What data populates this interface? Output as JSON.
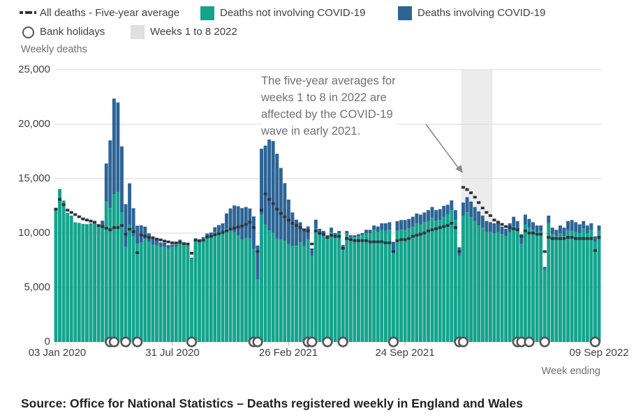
{
  "legend": {
    "five_year_avg": "All deaths - Five-year average",
    "not_covid": "Deaths not involving COVID-19",
    "covid": "Deaths involving COVID-19",
    "bank_holidays": "Bank holidays",
    "weeks_band": "Weeks 1 to 8 2022"
  },
  "axis": {
    "y_title": "Weekly deaths",
    "x_title": "Week ending"
  },
  "annotation": {
    "lines": [
      "The five-year averages for",
      "weeks 1 to 8 in 2022 are",
      "affected by the COVID-19",
      "wave in early 2021."
    ]
  },
  "source": "Source: Office for National Statistics – Deaths registered weekly in England and Wales",
  "colors": {
    "bar_green": "#14a38c",
    "bar_blue": "#2c6495",
    "avg_line": "#2b343f",
    "band": "#ececec",
    "band_swatch": "#e0e0e0",
    "grid": "#d9d9d9",
    "tick": "#b0b0b0",
    "ring": "#55565a",
    "arrow": "#8a8a8a"
  },
  "chart_data": {
    "type": "bar",
    "subtype": "stacked-weekly-bars-with-average-line",
    "title": "",
    "xlabel": "Week ending",
    "ylabel": "Weekly deaths",
    "ylim": [
      0,
      25000
    ],
    "grid": "horizontal",
    "legend_position": "top",
    "weeks_total": 141,
    "y_ticks": [
      0,
      5000,
      10000,
      15000,
      20000,
      25000
    ],
    "y_tick_labels": [
      "0",
      "5,000",
      "10,000",
      "15,000",
      "20,000",
      "25,000"
    ],
    "x_ticks": [
      {
        "label": "03 Jan 2020",
        "week": 0
      },
      {
        "label": "31 Jul 2020",
        "week": 30
      },
      {
        "label": "26 Feb 2021",
        "week": 60
      },
      {
        "label": "24 Sep 2021",
        "week": 90
      },
      {
        "label": "09 Sep 2022",
        "week": 140
      }
    ],
    "highlight_band": {
      "label": "Weeks 1 to 8 2022",
      "from_week": 105,
      "to_week": 112
    },
    "bank_holiday_weeks": [
      14,
      15,
      18,
      21,
      35,
      51,
      52,
      65,
      66,
      70,
      74,
      87,
      104,
      105,
      119,
      120,
      122,
      126,
      139
    ],
    "series": [
      {
        "name": "Deaths not involving COVID-19",
        "type": "bar",
        "values": [
          12300,
          14050,
          12990,
          11860,
          11610,
          10990,
          10940,
          10840,
          10820,
          10890,
          11010,
          10540,
          10600,
          12910,
          12300,
          13590,
          13760,
          11920,
          8730,
          10760,
          9700,
          9030,
          9120,
          9480,
          9190,
          8920,
          8910,
          8750,
          8730,
          8600,
          8730,
          8750,
          9250,
          8890,
          8930,
          7660,
          9420,
          9110,
          9500,
          9740,
          9730,
          10100,
          10120,
          10130,
          10430,
          10320,
          10070,
          9760,
          9420,
          9560,
          9500,
          8540,
          5720,
          11690,
          10800,
          10250,
          10020,
          9510,
          9430,
          9330,
          9000,
          8810,
          8830,
          9160,
          8810,
          9430,
          7900,
          10430,
          9800,
          9700,
          9400,
          10100,
          9700,
          10000,
          8700,
          10000,
          9600,
          9600,
          9700,
          9800,
          10000,
          10000,
          10300,
          10100,
          10300,
          10200,
          10300,
          8400,
          10200,
          10300,
          10300,
          10400,
          10600,
          10900,
          10800,
          11000,
          11100,
          11400,
          11100,
          11200,
          11500,
          11700,
          12100,
          11200,
          7900,
          11600,
          11900,
          11500,
          11100,
          10700,
          10500,
          10100,
          10100,
          10000,
          10100,
          9900,
          9700,
          10100,
          10600,
          10200,
          9000,
          10800,
          10500,
          10300,
          10100,
          10200,
          6700,
          10900,
          9900,
          9700,
          10000,
          9700,
          10200,
          10200,
          10100,
          10000,
          10400,
          10000,
          10300,
          9200,
          10200
        ]
      },
      {
        "name": "Deaths involving COVID-19",
        "type": "bar",
        "values": [
          0,
          0,
          0,
          0,
          0,
          0,
          0,
          0,
          0,
          10,
          10,
          100,
          540,
          3480,
          6210,
          8760,
          8240,
          6040,
          3930,
          3810,
          2590,
          1650,
          1590,
          1110,
          780,
          610,
          530,
          390,
          390,
          300,
          220,
          190,
          140,
          140,
          100,
          80,
          100,
          110,
          140,
          220,
          320,
          440,
          620,
          760,
          1380,
          1940,
          2470,
          2700,
          2880,
          2840,
          2760,
          2990,
          3140,
          6060,
          7240,
          8420,
          8430,
          7780,
          6560,
          5260,
          4080,
          3090,
          2400,
          1830,
          1500,
          1180,
          700,
          800,
          600,
          500,
          400,
          400,
          300,
          200,
          200,
          200,
          200,
          200,
          200,
          200,
          300,
          300,
          400,
          500,
          600,
          700,
          700,
          800,
          900,
          900,
          900,
          900,
          900,
          900,
          900,
          900,
          1000,
          1000,
          1000,
          1000,
          1000,
          900,
          900,
          900,
          800,
          1200,
          1400,
          1400,
          1300,
          1300,
          1100,
          1000,
          900,
          900,
          800,
          700,
          700,
          800,
          900,
          900,
          900,
          900,
          800,
          700,
          600,
          500,
          200,
          700,
          600,
          600,
          700,
          800,
          900,
          1000,
          900,
          800,
          700,
          700,
          600,
          500,
          500
        ]
      },
      {
        "name": "All deaths - Five-year average",
        "type": "line",
        "values": [
          12200,
          13100,
          12600,
          12100,
          11900,
          11700,
          11500,
          11300,
          11200,
          11100,
          11000,
          10700,
          10600,
          10450,
          10300,
          10500,
          10500,
          10700,
          9900,
          10360,
          10130,
          8200,
          9820,
          9720,
          9600,
          9580,
          9440,
          9370,
          9270,
          9190,
          9100,
          9090,
          9150,
          9030,
          9000,
          8150,
          9350,
          9300,
          9350,
          9650,
          9700,
          9850,
          9950,
          10050,
          10200,
          10350,
          10450,
          10550,
          10650,
          10800,
          11000,
          10500,
          8300,
          12100,
          13600,
          13100,
          12700,
          12200,
          11800,
          11500,
          11200,
          10900,
          10700,
          10500,
          10300,
          10200,
          9000,
          10200,
          10000,
          9900,
          9600,
          9800,
          9700,
          9700,
          8600,
          9500,
          9400,
          9300,
          9300,
          9300,
          9300,
          9200,
          9200,
          9200,
          9200,
          9100,
          9100,
          8300,
          9300,
          9400,
          9400,
          9500,
          9700,
          9800,
          9900,
          10000,
          10200,
          10300,
          10400,
          10500,
          10600,
          10700,
          10900,
          10500,
          8300,
          14200,
          14000,
          13700,
          13300,
          12800,
          12300,
          11900,
          11600,
          11200,
          11000,
          10800,
          10600,
          10500,
          10400,
          10300,
          9700,
          10200,
          10000,
          10000,
          9900,
          9900,
          8300,
          9600,
          9500,
          9500,
          9500,
          9500,
          9600,
          9600,
          9500,
          9500,
          9500,
          9500,
          9500,
          8400,
          9600
        ]
      }
    ]
  }
}
